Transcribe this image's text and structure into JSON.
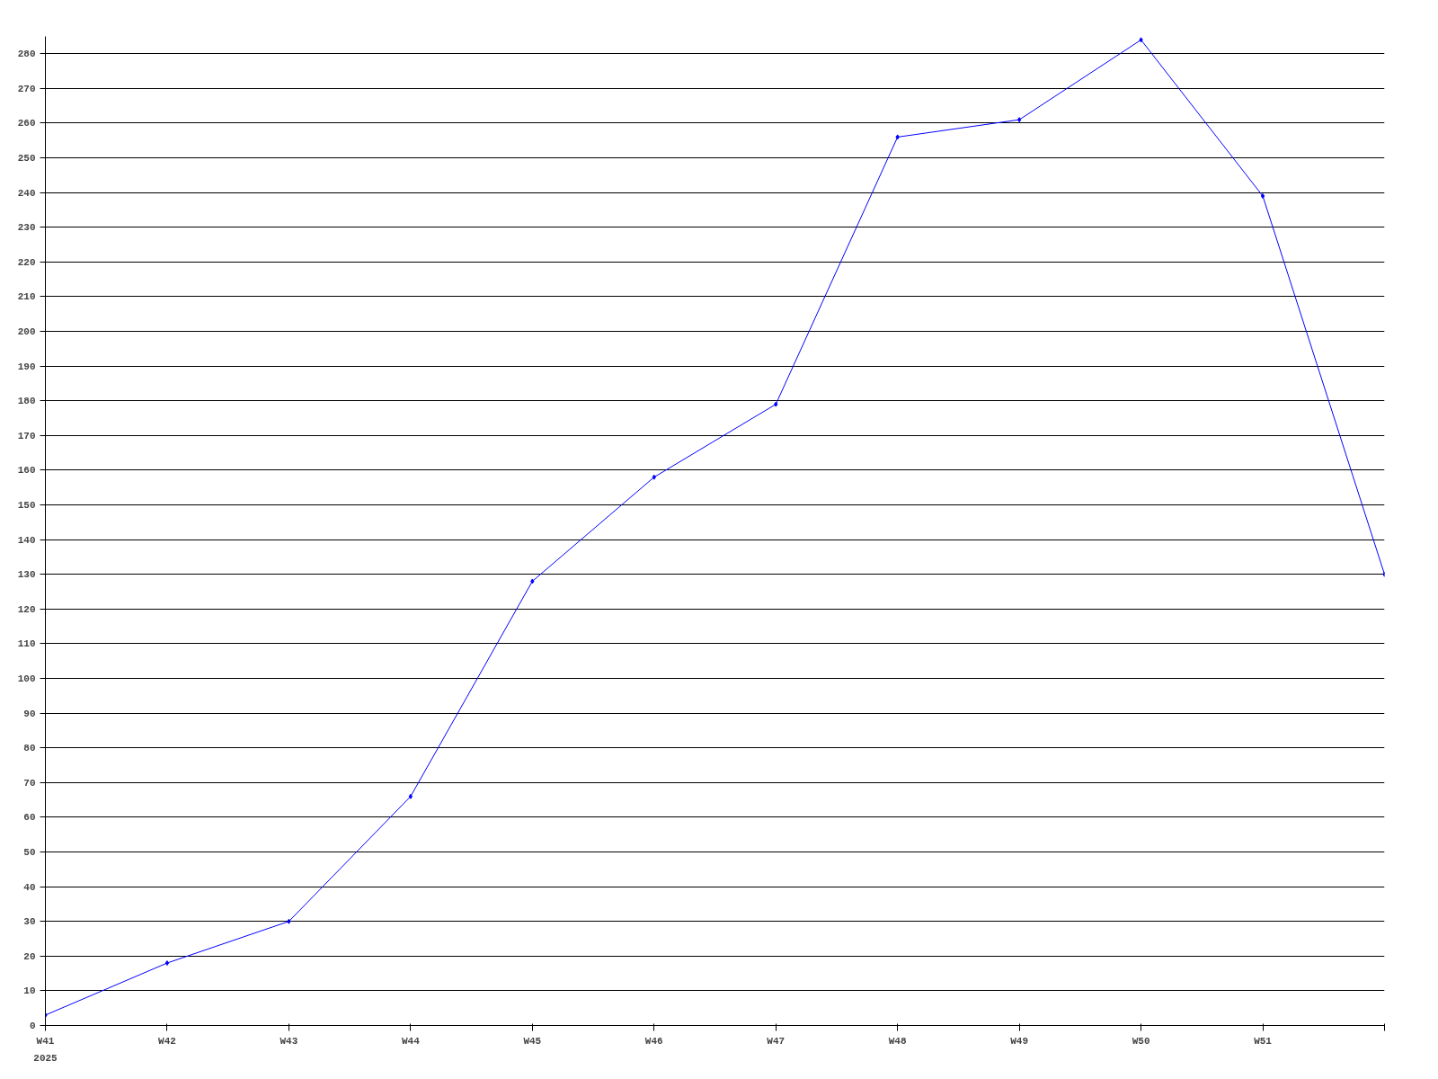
{
  "chart_data": {
    "type": "line",
    "categories": [
      "W41",
      "W42",
      "W43",
      "W44",
      "W45",
      "W46",
      "W47",
      "W48",
      "W49",
      "W50",
      "W51",
      null
    ],
    "series": [
      {
        "color": "#0000ff",
        "values": [
          3,
          18,
          30,
          66,
          128,
          158,
          179,
          256,
          261,
          284,
          239,
          130
        ]
      }
    ],
    "ylim": [
      0,
      285
    ],
    "yticks": [
      0,
      10,
      20,
      30,
      40,
      50,
      60,
      70,
      80,
      90,
      100,
      110,
      120,
      130,
      140,
      150,
      160,
      170,
      180,
      190,
      200,
      210,
      220,
      230,
      240,
      250,
      260,
      270,
      280
    ],
    "grid": "y",
    "marker": "diamond",
    "line_style": "solid",
    "annotations": [
      "2025"
    ]
  }
}
